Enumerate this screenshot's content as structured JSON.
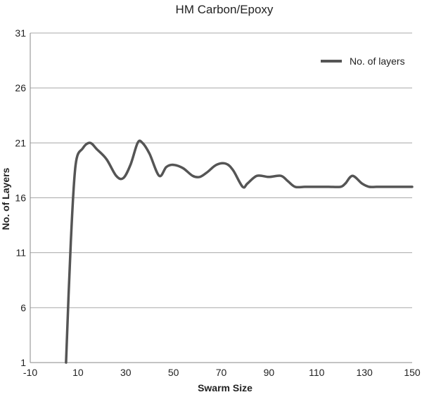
{
  "chart_data": {
    "type": "line",
    "title": "HM Carbon/Epoxy",
    "xlabel": "Swarm Size",
    "ylabel": "No. of Layers",
    "xlim": [
      -10,
      150
    ],
    "ylim": [
      1,
      31
    ],
    "xticks": [
      -10,
      10,
      30,
      50,
      70,
      90,
      110,
      130,
      150
    ],
    "yticks": [
      1,
      6,
      11,
      16,
      21,
      26,
      31
    ],
    "grid": true,
    "legend_position": "top-right",
    "line_color": "#555555",
    "series": [
      {
        "name": "No. of layers",
        "x": [
          5,
          7,
          9,
          12,
          15,
          18,
          22,
          26,
          29,
          32,
          35,
          37,
          40,
          44,
          47,
          50,
          54,
          58,
          61,
          64,
          68,
          72,
          75,
          79,
          81,
          85,
          90,
          95,
          98,
          101,
          105,
          110,
          115,
          120,
          122,
          125,
          129,
          132,
          135,
          140,
          145,
          150
        ],
        "y": [
          1,
          12,
          19,
          20.5,
          21,
          20.4,
          19.5,
          18,
          17.8,
          19,
          21,
          21,
          20,
          18,
          18.8,
          19,
          18.7,
          18,
          17.9,
          18.3,
          19,
          19.1,
          18.5,
          17,
          17.3,
          18,
          17.9,
          18,
          17.5,
          17,
          17,
          17,
          17,
          17,
          17.3,
          18,
          17.3,
          17,
          17,
          17,
          17,
          17
        ]
      }
    ]
  }
}
